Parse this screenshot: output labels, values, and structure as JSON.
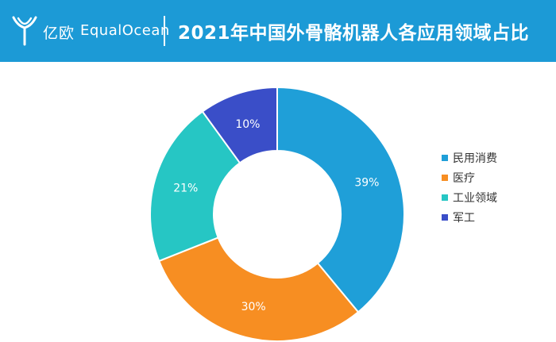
{
  "header": {
    "logo_cn": "亿欧",
    "logo_en": "EqualOcean",
    "title": "2021年中国外骨骼机器人各应用领域占比"
  },
  "colors": {
    "header_bg": "#1c9ad6",
    "slice_colors": [
      "#1f9fd8",
      "#f78e22",
      "#26c6c4",
      "#3a4ec8"
    ]
  },
  "chart_data": {
    "type": "pie",
    "donut": true,
    "categories": [
      "民用消费",
      "医疗",
      "工业领域",
      "军工"
    ],
    "values": [
      39,
      30,
      21,
      10
    ],
    "data_labels": [
      "39%",
      "30%",
      "21%",
      "10%"
    ],
    "legend_position": "right",
    "title": "2021年中国外骨骼机器人各应用领域占比"
  }
}
